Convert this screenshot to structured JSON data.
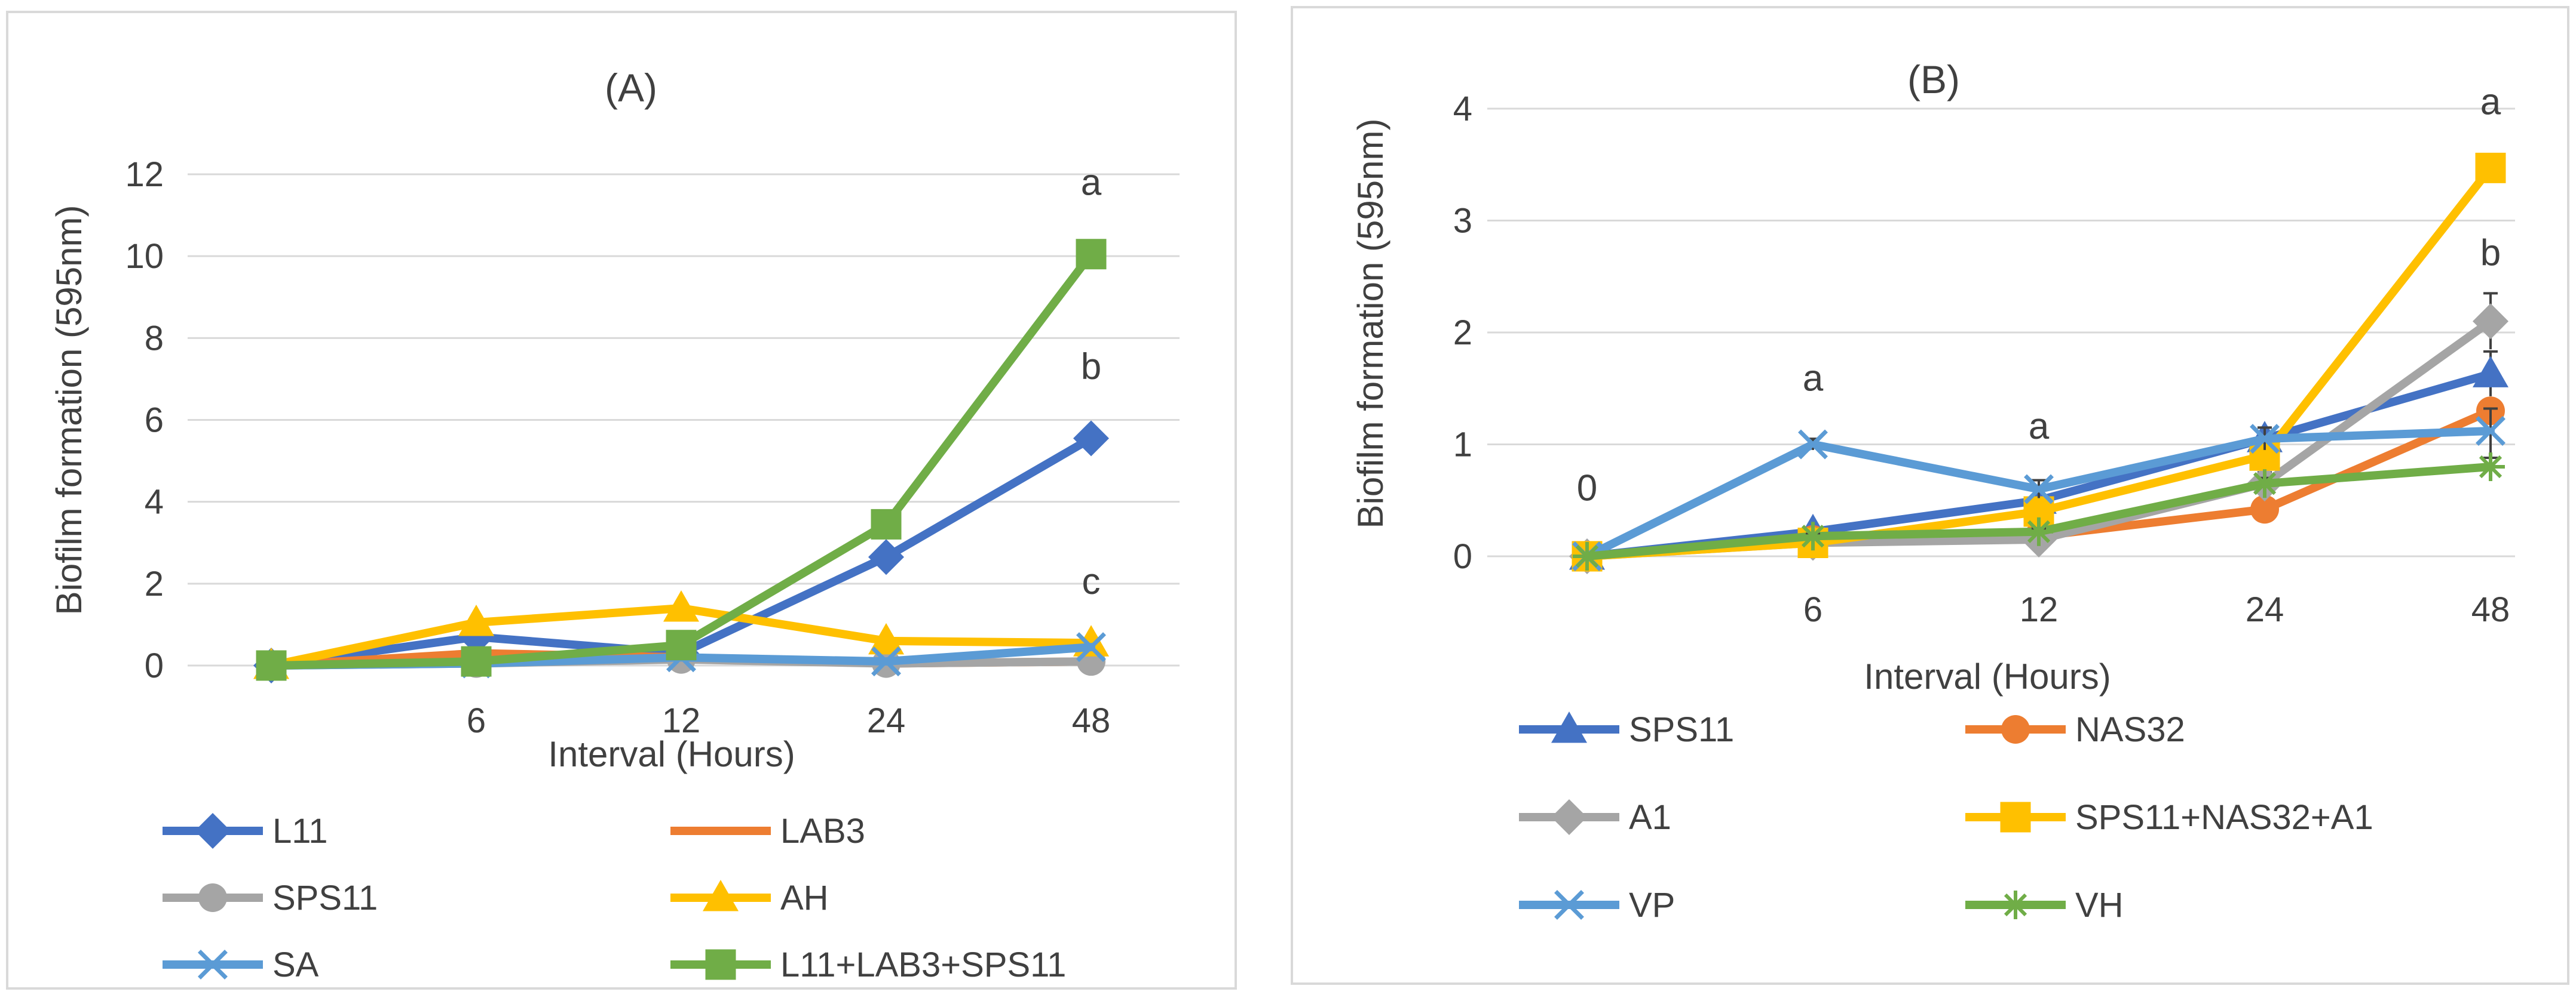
{
  "chart_data": [
    {
      "type": "line",
      "title": "(A)",
      "xlabel": "Interval (Hours)",
      "ylabel": "Biofilm formation (595nm)",
      "categories": [
        "",
        "6",
        "12",
        "24",
        "48"
      ],
      "ylim": [
        0,
        12
      ],
      "yticks": [
        "0",
        "2",
        "4",
        "6",
        "8",
        "10",
        "12"
      ],
      "grid": true,
      "legend": "bottom",
      "series": [
        {
          "name": "L11",
          "color": "#4472c4",
          "marker": "diamond",
          "values": [
            0,
            0.7,
            0.3,
            2.65,
            5.55
          ]
        },
        {
          "name": "LAB3",
          "color": "#ed7d31",
          "marker": "none",
          "values": [
            0,
            0.3,
            0.2,
            0.05,
            0.1
          ]
        },
        {
          "name": "SPS11",
          "color": "#a5a5a5",
          "marker": "circle",
          "values": [
            0,
            0.05,
            0.15,
            0.05,
            0.1
          ]
        },
        {
          "name": "AH",
          "color": "#ffc000",
          "marker": "triangle",
          "values": [
            0,
            1.05,
            1.4,
            0.6,
            0.55
          ]
        },
        {
          "name": "SA",
          "color": "#5b9bd5",
          "marker": "x",
          "values": [
            0,
            0.05,
            0.2,
            0.1,
            0.45
          ]
        },
        {
          "name": "L11+LAB3+SPS11",
          "color": "#70ad47",
          "marker": "square",
          "values": [
            0,
            0.1,
            0.5,
            3.45,
            10.05
          ]
        }
      ],
      "annotations": [
        {
          "text": "a",
          "category": 4,
          "y": 11.5
        },
        {
          "text": "b",
          "category": 4,
          "y": 7.0
        },
        {
          "text": "c",
          "category": 4,
          "y": 1.75
        }
      ]
    },
    {
      "type": "line",
      "title": "(B)",
      "xlabel": "Interval (Hours)",
      "ylabel": "Biofilm formation (595nm)",
      "categories": [
        "",
        "6",
        "12",
        "24",
        "48"
      ],
      "ylim": [
        0,
        4
      ],
      "yticks": [
        "0",
        "1",
        "2",
        "3",
        "4"
      ],
      "grid": true,
      "legend": "bottom",
      "series": [
        {
          "name": "SPS11",
          "color": "#4472c4",
          "marker": "triangle",
          "values": [
            0,
            0.22,
            0.5,
            1.05,
            1.63
          ],
          "errors": [
            0,
            0.03,
            0.05,
            0.1,
            0.2
          ]
        },
        {
          "name": "NAS32",
          "color": "#ed7d31",
          "marker": "circle",
          "values": [
            0,
            0.15,
            0.18,
            0.42,
            1.3
          ],
          "errors": [
            0,
            0.02,
            0.03,
            0.05,
            0.1
          ]
        },
        {
          "name": "A1",
          "color": "#a5a5a5",
          "marker": "diamond",
          "values": [
            0,
            0.12,
            0.15,
            0.65,
            2.1
          ],
          "errors": [
            0,
            0.02,
            0.03,
            0.1,
            0.25
          ]
        },
        {
          "name": "SPS11+NAS32+A1",
          "color": "#ffc000",
          "marker": "square",
          "values": [
            0,
            0.12,
            0.4,
            0.9,
            3.47
          ],
          "errors": [
            0,
            0.02,
            0.05,
            0.1,
            0.1
          ]
        },
        {
          "name": "VP",
          "color": "#5b9bd5",
          "marker": "x",
          "values": [
            0,
            1.0,
            0.6,
            1.05,
            1.12
          ],
          "errors": [
            0,
            0.05,
            0.08,
            0.1,
            0.2
          ]
        },
        {
          "name": "VH",
          "color": "#70ad47",
          "marker": "star",
          "values": [
            0,
            0.18,
            0.22,
            0.65,
            0.8
          ],
          "errors": [
            0,
            0.02,
            0.03,
            0.05,
            0.08
          ]
        }
      ],
      "annotations": [
        {
          "text": "0",
          "category": 0,
          "y": 0.5
        },
        {
          "text": "a",
          "category": 1,
          "y": 1.48
        },
        {
          "text": "a",
          "category": 2,
          "y": 1.05
        },
        {
          "text": "a",
          "category": 4,
          "y": 3.95
        },
        {
          "text": "b",
          "category": 4,
          "y": 2.6
        }
      ]
    }
  ]
}
